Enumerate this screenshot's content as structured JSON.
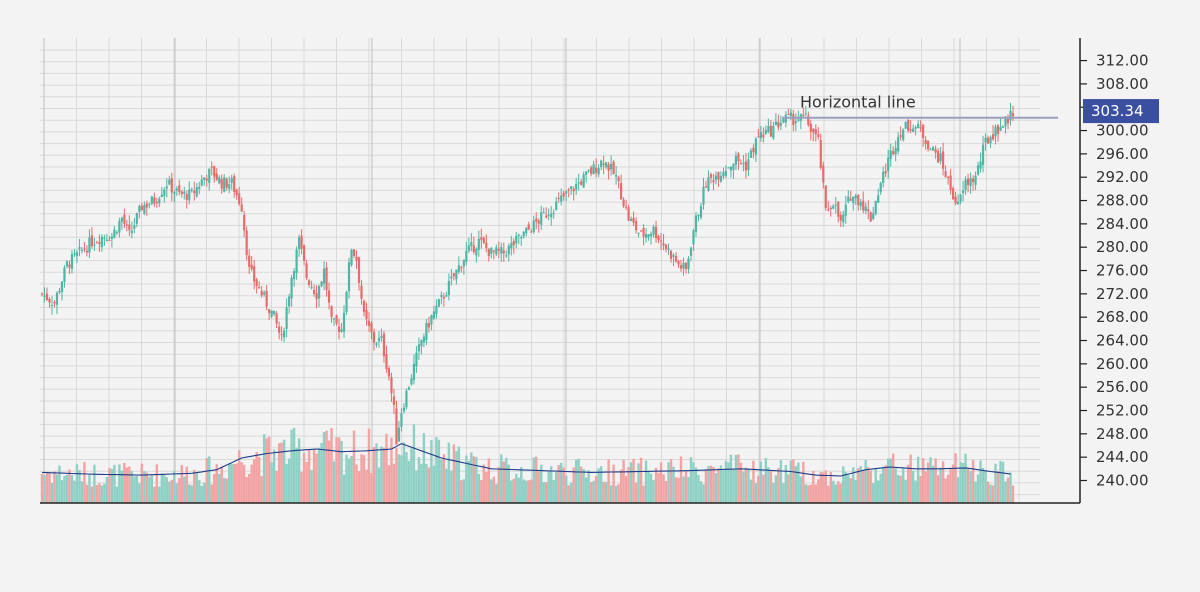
{
  "colors": {
    "background": "#f3f3f3",
    "grid": "#d9d9d9",
    "up": "#4fb5a4",
    "down": "#e86b6b",
    "volume_up": "#8fd0c5",
    "volume_down": "#f2a3a3",
    "moving_average": "#1f3c8a",
    "horizontal_line": "#9a9fc0",
    "price_badge": "#3a4fa0"
  },
  "chart_data": {
    "type": "candlestick",
    "title": "",
    "xlabel": "",
    "ylabel": "",
    "ylim": [
      236.0,
      314.0
    ],
    "y_ticks": [
      "312.00",
      "308.00",
      "304.00",
      "300.00",
      "296.00",
      "292.00",
      "288.00",
      "284.00",
      "280.00",
      "276.00",
      "272.00",
      "268.00",
      "264.00",
      "260.00",
      "256.00",
      "252.00",
      "248.00",
      "244.00",
      "240.00"
    ],
    "grid": true,
    "last_price_label": "303.34",
    "annotations": [
      {
        "type": "horizontal-line",
        "label": "Horizontal line",
        "y": 302.2
      }
    ],
    "price_anchors": [
      [
        0,
        272
      ],
      [
        5,
        270.5
      ],
      [
        10,
        277
      ],
      [
        15,
        279
      ],
      [
        20,
        281
      ],
      [
        25,
        282
      ],
      [
        28,
        282
      ],
      [
        32,
        285
      ],
      [
        35,
        282
      ],
      [
        40,
        287
      ],
      [
        45,
        288
      ],
      [
        50,
        291
      ],
      [
        55,
        289
      ],
      [
        60,
        289
      ],
      [
        65,
        292
      ],
      [
        68,
        293
      ],
      [
        72,
        291
      ],
      [
        76,
        291
      ],
      [
        80,
        287
      ],
      [
        83,
        276
      ],
      [
        88,
        272
      ],
      [
        93,
        268
      ],
      [
        96,
        264
      ],
      [
        100,
        275
      ],
      [
        103,
        281
      ],
      [
        106,
        275
      ],
      [
        110,
        272
      ],
      [
        113,
        276
      ],
      [
        116,
        267
      ],
      [
        120,
        266
      ],
      [
        124,
        280
      ],
      [
        126,
        278
      ],
      [
        129,
        268
      ],
      [
        133,
        264
      ],
      [
        136,
        264
      ],
      [
        139,
        258
      ],
      [
        141,
        252
      ],
      [
        142,
        247
      ],
      [
        144,
        252
      ],
      [
        148,
        258
      ],
      [
        152,
        264
      ],
      [
        156,
        268
      ],
      [
        160,
        271
      ],
      [
        165,
        275
      ],
      [
        170,
        279
      ],
      [
        175,
        281
      ],
      [
        180,
        279
      ],
      [
        185,
        279
      ],
      [
        190,
        281
      ],
      [
        195,
        283
      ],
      [
        200,
        285
      ],
      [
        205,
        287
      ],
      [
        210,
        289
      ],
      [
        215,
        291
      ],
      [
        220,
        293
      ],
      [
        225,
        295
      ],
      [
        230,
        292
      ],
      [
        235,
        285
      ],
      [
        240,
        282
      ],
      [
        245,
        283
      ],
      [
        250,
        280
      ],
      [
        255,
        277
      ],
      [
        258,
        276
      ],
      [
        261,
        283
      ],
      [
        266,
        291
      ],
      [
        272,
        293
      ],
      [
        278,
        295
      ],
      [
        282,
        294
      ],
      [
        287,
        299
      ],
      [
        292,
        300
      ],
      [
        297,
        302
      ],
      [
        302,
        302
      ],
      [
        306,
        302
      ],
      [
        311,
        298
      ],
      [
        314,
        286
      ],
      [
        317,
        288
      ],
      [
        320,
        284
      ],
      [
        324,
        289
      ],
      [
        328,
        288
      ],
      [
        332,
        285
      ],
      [
        336,
        291
      ],
      [
        340,
        296
      ],
      [
        344,
        300
      ],
      [
        348,
        301
      ],
      [
        352,
        300
      ],
      [
        356,
        297
      ],
      [
        360,
        295
      ],
      [
        364,
        290
      ],
      [
        367,
        287
      ],
      [
        370,
        291
      ],
      [
        374,
        292
      ],
      [
        378,
        298
      ],
      [
        382,
        300
      ],
      [
        386,
        301.5
      ],
      [
        389,
        303.3
      ]
    ],
    "volume_series_note": "volume bars with moving average overlay",
    "volume_anchors": [
      [
        0,
        0.34
      ],
      [
        20,
        0.32
      ],
      [
        40,
        0.31
      ],
      [
        60,
        0.33
      ],
      [
        70,
        0.37
      ],
      [
        80,
        0.5
      ],
      [
        90,
        0.55
      ],
      [
        100,
        0.58
      ],
      [
        110,
        0.6
      ],
      [
        120,
        0.57
      ],
      [
        130,
        0.58
      ],
      [
        140,
        0.6
      ],
      [
        144,
        0.66
      ],
      [
        150,
        0.6
      ],
      [
        160,
        0.5
      ],
      [
        170,
        0.44
      ],
      [
        180,
        0.38
      ],
      [
        190,
        0.37
      ],
      [
        200,
        0.36
      ],
      [
        220,
        0.34
      ],
      [
        240,
        0.35
      ],
      [
        260,
        0.36
      ],
      [
        280,
        0.38
      ],
      [
        300,
        0.35
      ],
      [
        310,
        0.31
      ],
      [
        320,
        0.3
      ],
      [
        330,
        0.37
      ],
      [
        340,
        0.4
      ],
      [
        350,
        0.38
      ],
      [
        360,
        0.38
      ],
      [
        370,
        0.39
      ],
      [
        380,
        0.35
      ],
      [
        389,
        0.32
      ]
    ]
  }
}
